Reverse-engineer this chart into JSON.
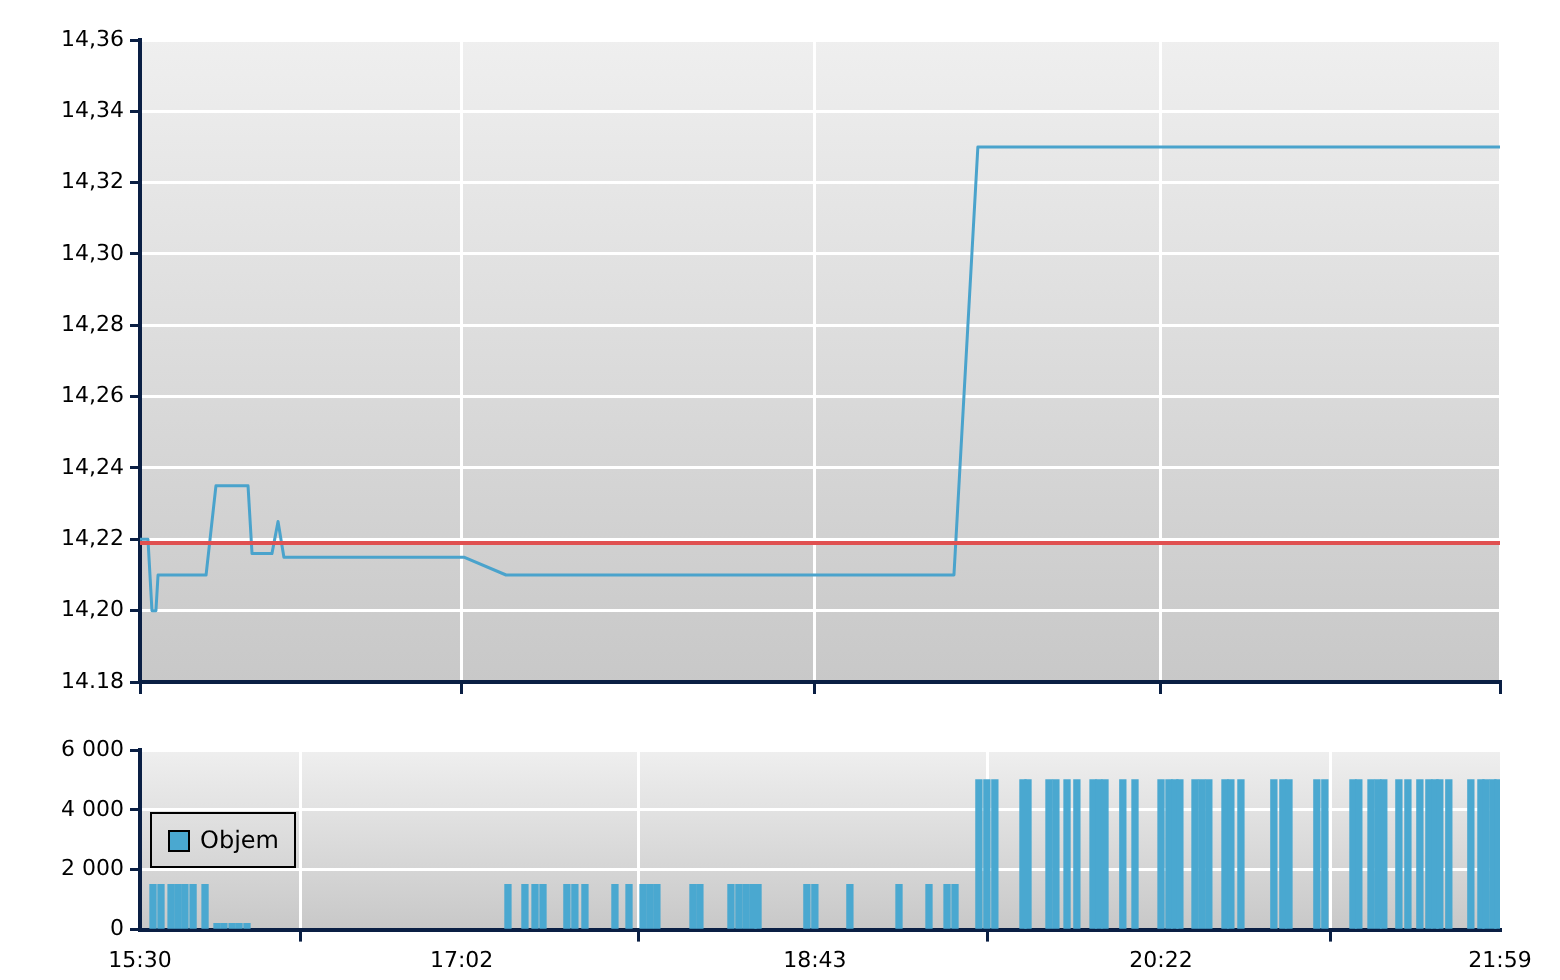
{
  "chart_data": [
    {
      "type": "line",
      "series": [
        {
          "color": "#4aa3cc",
          "x": [
            15.5,
            15.538,
            15.557,
            15.576,
            15.586,
            15.815,
            15.862,
            16.015,
            16.034,
            16.129,
            16.158,
            16.186,
            17.044,
            17.245,
            19.38,
            19.494,
            21.983
          ],
          "values": [
            14.22,
            14.22,
            14.2,
            14.2,
            14.21,
            14.21,
            14.235,
            14.235,
            14.216,
            14.216,
            14.225,
            14.215,
            14.215,
            14.21,
            14.21,
            14.33,
            14.33
          ]
        }
      ],
      "xlim": [
        15.5,
        21.983
      ],
      "xticks": [
        {
          "value": 15.5,
          "label": null
        },
        {
          "value": 17.033,
          "label": null
        },
        {
          "value": 18.717,
          "label": null
        },
        {
          "value": 20.367,
          "label": null
        },
        {
          "value": 21.983,
          "label": null
        }
      ],
      "ylim": [
        14.18,
        14.36
      ],
      "yticks": [
        {
          "value": 14.18,
          "label": "14.18"
        },
        {
          "value": 14.2,
          "label": "14,20"
        },
        {
          "value": 14.22,
          "label": "14,22"
        },
        {
          "value": 14.24,
          "label": "14,24"
        },
        {
          "value": 14.26,
          "label": "14,26"
        },
        {
          "value": 14.28,
          "label": "14,28"
        },
        {
          "value": 14.3,
          "label": "14,30"
        },
        {
          "value": 14.32,
          "label": "14,32"
        },
        {
          "value": 14.34,
          "label": "14,34"
        },
        {
          "value": 14.36,
          "label": "14,36"
        }
      ],
      "ref_lines": [
        {
          "axis": "y",
          "value": 14.219,
          "color": "#e05050"
        }
      ],
      "grid": true,
      "tick_labels": "y"
    },
    {
      "type": "bar",
      "series": [
        {
          "name": "Objem",
          "color": "#4aa8d0",
          "x": [
            15.562,
            15.6,
            15.648,
            15.681,
            15.714,
            15.753,
            15.81,
            15.867,
            15.9,
            15.939,
            15.972,
            16.01,
            17.254,
            17.335,
            17.383,
            17.421,
            17.535,
            17.573,
            17.621,
            17.764,
            17.831,
            17.898,
            17.931,
            17.964,
            18.136,
            18.169,
            18.317,
            18.355,
            18.389,
            18.422,
            18.446,
            18.679,
            18.717,
            18.884,
            19.118,
            19.261,
            19.347,
            19.385,
            19.499,
            19.537,
            19.575,
            19.709,
            19.733,
            19.833,
            19.866,
            19.919,
            19.966,
            20.043,
            20.071,
            20.1,
            20.185,
            20.243,
            20.367,
            20.405,
            20.433,
            20.457,
            20.529,
            20.562,
            20.595,
            20.672,
            20.7,
            20.748,
            20.905,
            20.948,
            20.977,
            21.11,
            21.148,
            21.282,
            21.31,
            21.368,
            21.401,
            21.429,
            21.501,
            21.544,
            21.601,
            21.644,
            21.673,
            21.696,
            21.739,
            21.844,
            21.892,
            21.916,
            21.949,
            21.973
          ],
          "values": [
            1500,
            1500,
            1500,
            1500,
            1500,
            1500,
            1500,
            200,
            200,
            200,
            200,
            200,
            1500,
            1500,
            1500,
            1500,
            1500,
            1500,
            1500,
            1500,
            1500,
            1500,
            1500,
            1500,
            1500,
            1500,
            1500,
            1500,
            1500,
            1500,
            1500,
            1500,
            1500,
            1500,
            1500,
            1500,
            1500,
            1500,
            5000,
            5000,
            5000,
            5000,
            5000,
            5000,
            5000,
            5000,
            5000,
            5000,
            5000,
            5000,
            5000,
            5000,
            5000,
            5000,
            5000,
            5000,
            5000,
            5000,
            5000,
            5000,
            5000,
            5000,
            5000,
            5000,
            5000,
            5000,
            5000,
            5000,
            5000,
            5000,
            5000,
            5000,
            5000,
            5000,
            5000,
            5000,
            5000,
            5000,
            5000,
            5000,
            5000,
            5000,
            5000,
            5000
          ]
        }
      ],
      "xlim": [
        15.5,
        21.983
      ],
      "xticks": [
        {
          "value": 15.5,
          "label": "15:30"
        },
        {
          "value": 17.033,
          "label": "17:02"
        },
        {
          "value": 18.717,
          "label": "18:43"
        },
        {
          "value": 20.367,
          "label": "20:22"
        },
        {
          "value": 21.983,
          "label": "21:59"
        }
      ],
      "ylim": [
        0,
        6000
      ],
      "yticks": [
        {
          "value": 0,
          "label": "0"
        },
        {
          "value": 2000,
          "label": "2 000"
        },
        {
          "value": 4000,
          "label": "4 000"
        },
        {
          "value": 6000,
          "label": "6 000"
        }
      ],
      "grid": true,
      "legend": "left"
    }
  ]
}
